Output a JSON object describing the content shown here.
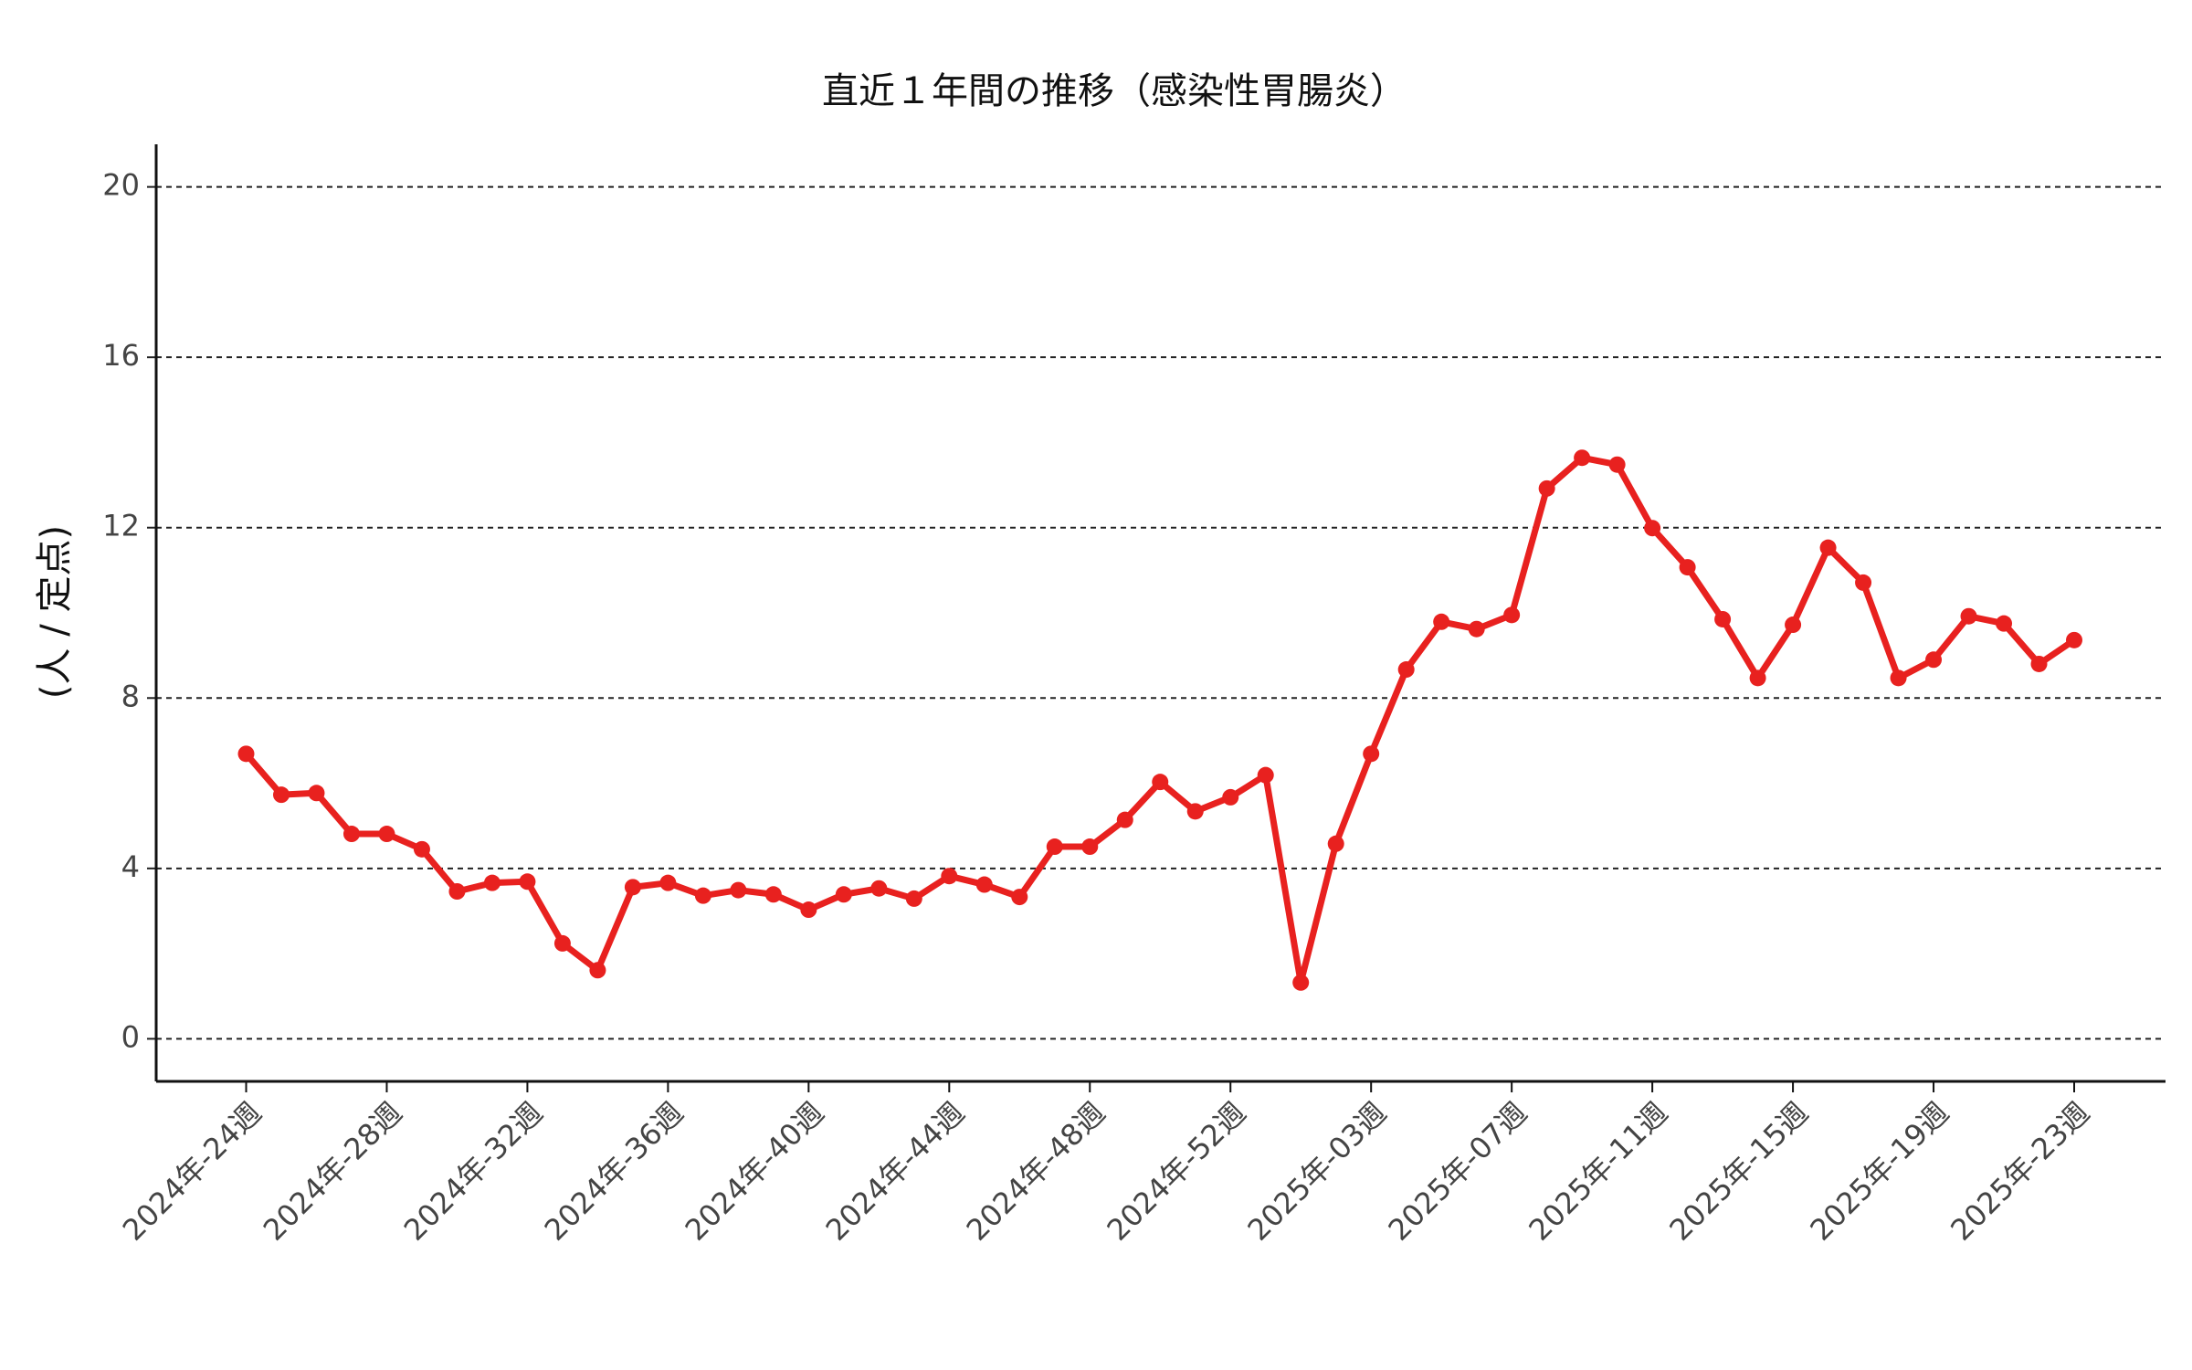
{
  "chart_data": {
    "type": "line",
    "title": "直近１年間の推移（感染性胃腸炎）",
    "y_label": "(人 / 定点)",
    "categories": [
      "2024年-24週",
      null,
      null,
      null,
      "2024年-28週",
      null,
      null,
      null,
      "2024年-32週",
      null,
      null,
      null,
      "2024年-36週",
      null,
      null,
      null,
      "2024年-40週",
      null,
      null,
      null,
      "2024年-44週",
      null,
      null,
      null,
      "2024年-48週",
      null,
      null,
      null,
      "2024年-52週",
      null,
      null,
      null,
      "2025年-03週",
      null,
      null,
      null,
      "2025年-07週",
      null,
      null,
      null,
      "2025年-11週",
      null,
      null,
      null,
      "2025年-15週",
      null,
      null,
      null,
      "2025年-19週",
      null,
      null,
      null,
      "2025年-23週"
    ],
    "series": [
      {
        "color": "#e8211f",
        "values": [
          6.69,
          5.73,
          5.77,
          4.81,
          4.81,
          4.45,
          3.46,
          3.66,
          3.69,
          2.24,
          1.61,
          3.56,
          3.66,
          3.36,
          3.49,
          3.39,
          3.03,
          3.39,
          3.53,
          3.29,
          3.82,
          3.62,
          3.33,
          4.51,
          4.51,
          5.14,
          6.03,
          5.34,
          5.67,
          6.19,
          1.32,
          4.58,
          6.69,
          8.67,
          9.79,
          9.62,
          9.95,
          12.92,
          13.64,
          13.48,
          11.99,
          11.07,
          9.85,
          8.47,
          9.72,
          11.53,
          10.71,
          8.47,
          8.9,
          9.92,
          9.75,
          8.8,
          9.36
        ]
      }
    ],
    "ylim": [
      -1,
      21
    ],
    "yticks": [
      0,
      4,
      8,
      12,
      16,
      20
    ],
    "grid": true
  }
}
